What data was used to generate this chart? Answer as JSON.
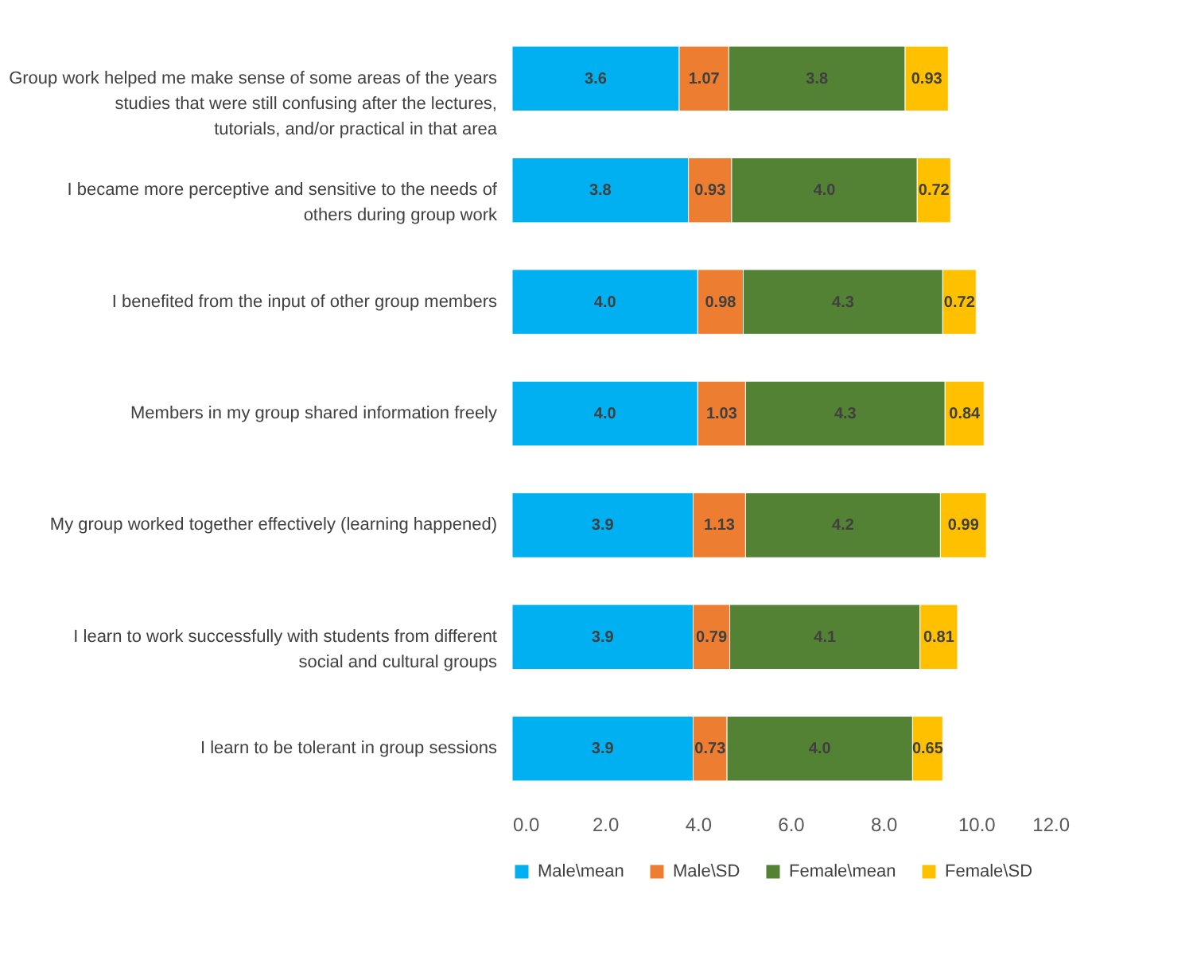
{
  "chart_data": {
    "type": "bar",
    "orientation": "horizontal",
    "stacked": true,
    "categories": [
      "Group work helped me make sense of some areas of the years studies that were still confusing after the lectures, tutorials, and/or practical in that area",
      "I became more perceptive and sensitive to the needs of others during group work",
      "I benefited from the input of other group members",
      "Members in my group shared information freely",
      "My group worked together effectively (learning happened)",
      "I learn to work successfully with students from different social and cultural groups",
      "I learn to be tolerant in group sessions"
    ],
    "series": [
      {
        "name": "Male\\mean",
        "color": "#00b0f0",
        "values": [
          3.6,
          3.8,
          4.0,
          4.0,
          3.9,
          3.9,
          3.9
        ],
        "value_labels": [
          "3.6",
          "3.8",
          "4.0",
          "4.0",
          "3.9",
          "3.9",
          "3.9"
        ]
      },
      {
        "name": "Male\\SD",
        "color": "#ed7d31",
        "values": [
          1.07,
          0.93,
          0.98,
          1.03,
          1.13,
          0.79,
          0.73
        ],
        "value_labels": [
          "1.07",
          "0.93",
          "0.98",
          "1.03",
          "1.13",
          "0.79",
          "0.73"
        ]
      },
      {
        "name": "Female\\mean",
        "color": "#548235",
        "values": [
          3.8,
          4.0,
          4.3,
          4.3,
          4.2,
          4.1,
          4.0
        ],
        "value_labels": [
          "3.8",
          "4.0",
          "4.3",
          "4.3",
          "4.2",
          "4.1",
          "4.0"
        ]
      },
      {
        "name": "Female\\SD",
        "color": "#ffc000",
        "values": [
          0.93,
          0.72,
          0.72,
          0.84,
          0.99,
          0.81,
          0.65
        ],
        "value_labels": [
          "0.93",
          "0.72",
          "0.72",
          "0.84",
          "0.99",
          "0.81",
          "0.65"
        ]
      }
    ],
    "xlim": [
      0,
      12
    ],
    "xticks": [
      {
        "value": 0,
        "label": "0.0"
      },
      {
        "value": 2,
        "label": "2.0"
      },
      {
        "value": 4,
        "label": "4.0"
      },
      {
        "value": 6,
        "label": "6.0"
      },
      {
        "value": 8,
        "label": "8.0"
      },
      {
        "value": 10,
        "label": "10.0"
      },
      {
        "value": 12,
        "label": "12.0"
      }
    ],
    "grid": false,
    "legend": "bottom"
  }
}
